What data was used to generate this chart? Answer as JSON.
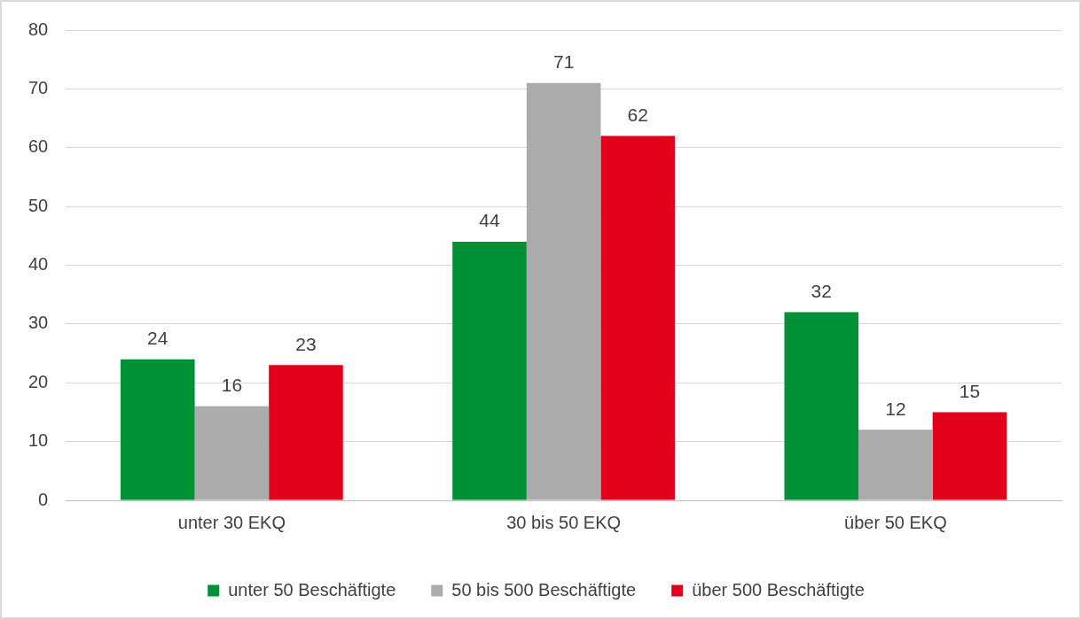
{
  "chart_data": {
    "type": "bar",
    "categories": [
      "unter 30 EKQ",
      "30 bis 50 EKQ",
      "über 50 EKQ"
    ],
    "series": [
      {
        "name": "unter 50 Beschäftigte",
        "color": "#009036",
        "values": [
          24,
          44,
          32
        ]
      },
      {
        "name": "50 bis 500 Beschäftigte",
        "color": "#ababab",
        "values": [
          16,
          71,
          12
        ]
      },
      {
        "name": "über 500 Beschäftigte",
        "color": "#e2001a",
        "values": [
          23,
          62,
          15
        ]
      }
    ],
    "ylim": [
      0,
      80
    ],
    "yticks": [
      0,
      10,
      20,
      30,
      40,
      50,
      60,
      70,
      80
    ],
    "grid": "y",
    "legend": "bottom",
    "data_labels": true
  }
}
